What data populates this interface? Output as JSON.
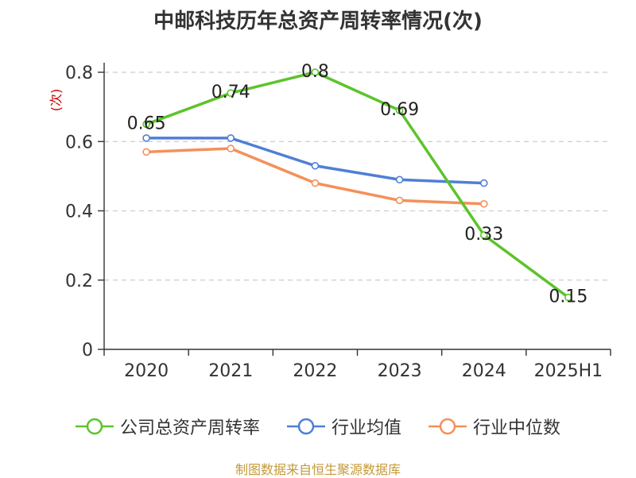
{
  "chart_data": {
    "type": "line",
    "title": "中邮科技历年总资产周转率情况(次)",
    "ylabel": "(次)",
    "categories": [
      "2020",
      "2021",
      "2022",
      "2023",
      "2024",
      "2025H1"
    ],
    "ylim": [
      0,
      0.8
    ],
    "yticks": [
      "0",
      "0.2",
      "0.4",
      "0.6",
      "0.8"
    ],
    "grid": true,
    "legend_position": "bottom",
    "series": [
      {
        "name": "公司总资产周转率",
        "color": "#5cc42b",
        "labels": true,
        "values": [
          0.65,
          0.74,
          0.8,
          0.69,
          0.33,
          0.15
        ],
        "value_labels": [
          "0.65",
          "0.74",
          "0.8",
          "0.69",
          "0.33",
          "0.15"
        ]
      },
      {
        "name": "行业均值",
        "color": "#4f7fd6",
        "labels": false,
        "values": [
          0.61,
          0.61,
          0.53,
          0.49,
          0.48,
          null
        ]
      },
      {
        "name": "行业中位数",
        "color": "#f4905a",
        "labels": false,
        "values": [
          0.57,
          0.58,
          0.48,
          0.43,
          0.42,
          null
        ]
      }
    ],
    "source": "制图数据来自恒生聚源数据库"
  }
}
